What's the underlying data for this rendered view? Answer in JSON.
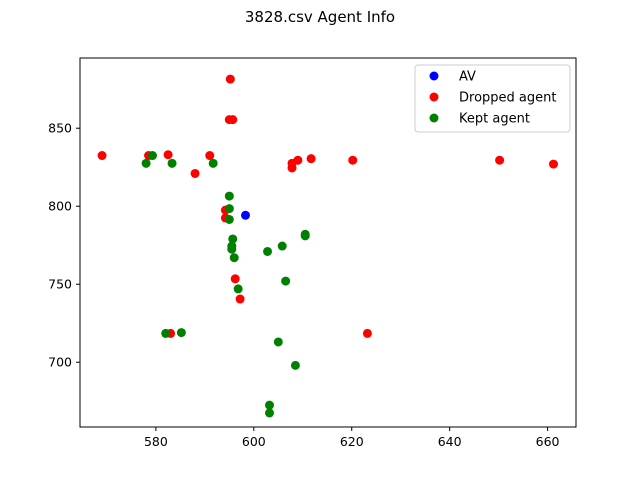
{
  "chart_data": {
    "type": "scatter",
    "title": "3828.csv Agent Info",
    "xlabel": "",
    "ylabel": "",
    "xlim": [
      564.5,
      665.8
    ],
    "ylim": [
      658.5,
      895.0
    ],
    "xticks": [
      580,
      600,
      620,
      640,
      660
    ],
    "yticks": [
      700,
      750,
      800,
      850
    ],
    "grid": false,
    "legend_position": "upper right",
    "series": [
      {
        "name": "AV",
        "color": "#0000ff",
        "points": [
          [
            598.3,
            794.2
          ]
        ]
      },
      {
        "name": "Dropped agent",
        "color": "#ff0000",
        "points": [
          [
            569.0,
            832.5
          ],
          [
            578.5,
            832.5
          ],
          [
            582.5,
            833.0
          ],
          [
            588.0,
            821.0
          ],
          [
            591.0,
            832.5
          ],
          [
            595.2,
            881.5
          ],
          [
            595.0,
            855.5
          ],
          [
            595.7,
            855.5
          ],
          [
            594.2,
            797.5
          ],
          [
            594.2,
            792.5
          ],
          [
            596.2,
            753.5
          ],
          [
            597.2,
            740.5
          ],
          [
            583.0,
            718.5
          ],
          [
            607.8,
            827.5
          ],
          [
            607.8,
            824.5
          ],
          [
            609.0,
            829.5
          ],
          [
            611.7,
            830.5
          ],
          [
            620.2,
            829.5
          ],
          [
            623.2,
            718.5
          ],
          [
            650.2,
            829.5
          ],
          [
            661.2,
            827.0
          ]
        ]
      },
      {
        "name": "Kept agent",
        "color": "#008000",
        "points": [
          [
            578.0,
            827.5
          ],
          [
            579.3,
            832.5
          ],
          [
            583.3,
            827.5
          ],
          [
            591.7,
            827.5
          ],
          [
            595.0,
            806.5
          ],
          [
            595.0,
            798.5
          ],
          [
            595.0,
            791.5
          ],
          [
            595.7,
            779.0
          ],
          [
            595.5,
            774.5
          ],
          [
            595.5,
            772.5
          ],
          [
            596.0,
            767.0
          ],
          [
            596.8,
            747.0
          ],
          [
            582.0,
            718.5
          ],
          [
            585.2,
            719.0
          ],
          [
            602.8,
            771.0
          ],
          [
            605.8,
            774.5
          ],
          [
            606.5,
            752.0
          ],
          [
            610.5,
            782.0
          ],
          [
            610.5,
            781.0
          ],
          [
            605.0,
            713.0
          ],
          [
            608.5,
            698.0
          ],
          [
            603.2,
            672.5
          ],
          [
            603.2,
            667.5
          ]
        ]
      }
    ]
  }
}
